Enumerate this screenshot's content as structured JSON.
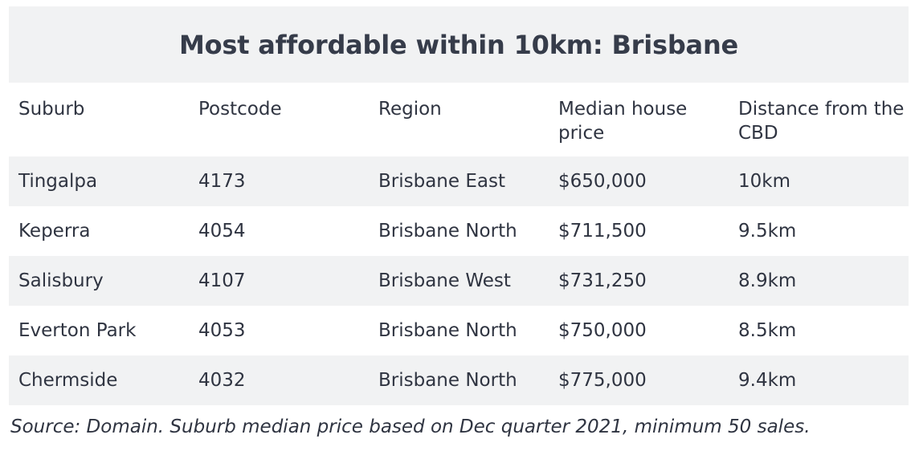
{
  "title": "Most affordable within 10km: Brisbane",
  "columns": [
    "Suburb",
    "Postcode",
    "Region",
    "Median house price",
    "Distance from the CBD"
  ],
  "rows": [
    [
      "Tingalpa",
      "4173",
      "Brisbane East",
      "$650,000",
      "10km"
    ],
    [
      "Keperra",
      "4054",
      "Brisbane North",
      "$711,500",
      "9.5km"
    ],
    [
      "Salisbury",
      "4107",
      "Brisbane West",
      "$731,250",
      "8.9km"
    ],
    [
      "Everton Park",
      "4053",
      "Brisbane North",
      "$750,000",
      "8.5km"
    ],
    [
      "Chermside",
      "4032",
      "Brisbane North",
      "$775,000",
      "9.4km"
    ]
  ],
  "source": "Source: Domain. Suburb median price based on Dec quarter 2021, minimum 50 sales.",
  "colors": {
    "band": "#f1f2f3",
    "text": "#2f3441"
  }
}
